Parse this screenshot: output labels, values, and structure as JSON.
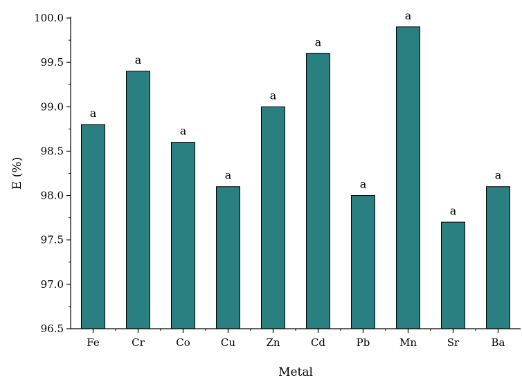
{
  "chart_data": {
    "type": "bar",
    "categories": [
      "Fe",
      "Cr",
      "Co",
      "Cu",
      "Zn",
      "Cd",
      "Pb",
      "Mn",
      "Sr",
      "Ba"
    ],
    "values": [
      98.8,
      99.4,
      98.6,
      98.1,
      99.0,
      99.6,
      98.0,
      99.9,
      97.7,
      98.1
    ],
    "data_labels": [
      "a",
      "a",
      "a",
      "a",
      "a",
      "a",
      "a",
      "a",
      "a",
      "a"
    ],
    "title": "",
    "xlabel": "Metal",
    "ylabel": "E (%)",
    "ylim": [
      96.5,
      100.0
    ],
    "yticks": [
      96.5,
      97.0,
      97.5,
      98.0,
      98.5,
      99.0,
      99.5,
      100.0
    ],
    "ytick_labels": [
      "96.5",
      "97.0",
      "97.5",
      "98.0",
      "98.5",
      "99.0",
      "99.5",
      "100.0"
    ],
    "grid": false,
    "legend": "none",
    "bar_color": "#2a8080"
  }
}
